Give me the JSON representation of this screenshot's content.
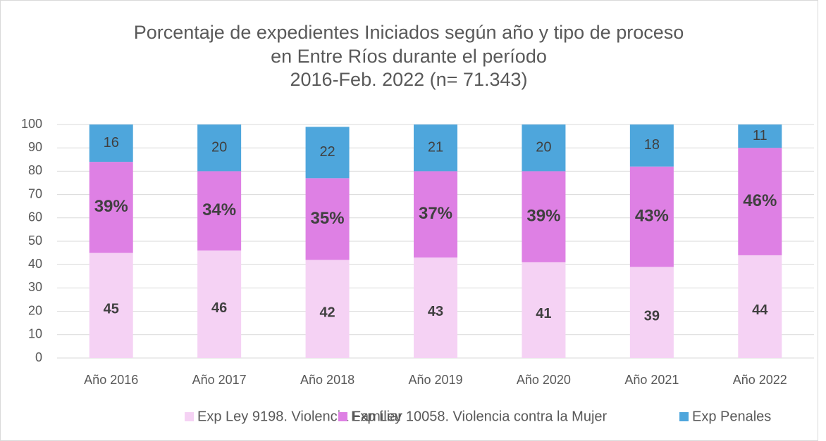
{
  "chart_data": {
    "type": "stacked_bar",
    "title": [
      "Porcentaje de expedientes Iniciados según año y tipo de proceso",
      "en Entre Ríos durante el período",
      "2016-Feb. 2022 (n= 71.343)"
    ],
    "categories": [
      "Año 2016",
      "Año 2017",
      "Año 2018",
      "Año 2019",
      "Año 2020",
      "Año 2021",
      "Año 2022"
    ],
    "series": [
      {
        "name": "Exp Ley 9198. Violencia Familiar",
        "color": "#f5d2f4",
        "values": [
          45,
          46,
          42,
          43,
          41,
          39,
          44
        ]
      },
      {
        "name": "Exp Ley 10058. Violencia contra la Mujer",
        "color": "#de80e4",
        "values": [
          39,
          34,
          35,
          37,
          39,
          43,
          46
        ],
        "value_labels": [
          "39%",
          "34%",
          "35%",
          "37%",
          "39%",
          "43%",
          "46%"
        ]
      },
      {
        "name": "Exp Penales",
        "color": "#4ea6dc",
        "values": [
          16,
          20,
          22,
          21,
          20,
          18,
          11
        ]
      }
    ],
    "ylim": [
      0,
      100
    ],
    "yticks": [
      0,
      10,
      20,
      30,
      40,
      50,
      60,
      70,
      80,
      90,
      100
    ],
    "grid": true,
    "legend": "bottom"
  }
}
